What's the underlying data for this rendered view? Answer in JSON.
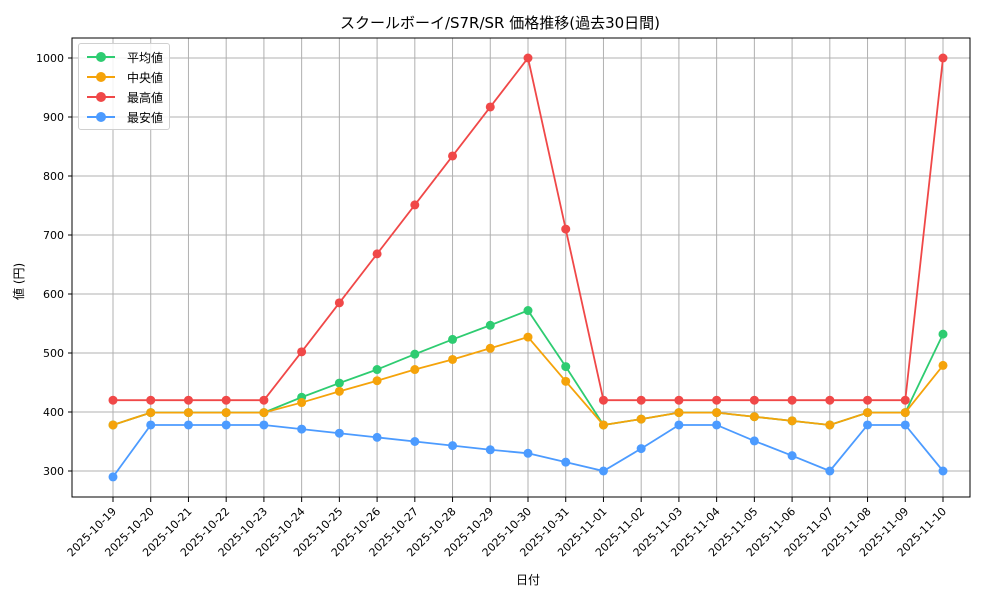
{
  "title": "スクールボーイ/S7R/SR 価格推移(過去30日間)",
  "chart_data": {
    "type": "line",
    "title": "スクールボーイ/S7R/SR 価格推移(過去30日間)",
    "xlabel": "日付",
    "ylabel": "値 (円)",
    "ylim": [
      255,
      1035
    ],
    "yticks": [
      300,
      400,
      500,
      600,
      700,
      800,
      900,
      1000
    ],
    "grid": true,
    "legend_position": "upper left",
    "categories": [
      "2025-10-19",
      "2025-10-20",
      "2025-10-21",
      "2025-10-22",
      "2025-10-23",
      "2025-10-24",
      "2025-10-25",
      "2025-10-26",
      "2025-10-27",
      "2025-10-28",
      "2025-10-29",
      "2025-10-30",
      "2025-10-31",
      "2025-11-01",
      "2025-11-02",
      "2025-11-03",
      "2025-11-04",
      "2025-11-05",
      "2025-11-06",
      "2025-11-07",
      "2025-11-08",
      "2025-11-09",
      "2025-11-10"
    ],
    "series": [
      {
        "name": "平均値",
        "color": "#2ecc71",
        "values": [
          378,
          399,
          399,
          399,
          399,
          425,
          449,
          472,
          498,
          523,
          547,
          572,
          477,
          378,
          388,
          399,
          399,
          392,
          385,
          378,
          399,
          399,
          532
        ]
      },
      {
        "name": "中央値",
        "color": "#f5a30a",
        "values": [
          378,
          399,
          399,
          399,
          399,
          416,
          435,
          453,
          472,
          489,
          508,
          527,
          452,
          378,
          388,
          399,
          399,
          392,
          385,
          378,
          399,
          399,
          479
        ]
      },
      {
        "name": "最高値",
        "color": "#f04848",
        "values": [
          420,
          420,
          420,
          420,
          420,
          502,
          585,
          668,
          751,
          834,
          917,
          1000,
          710,
          420,
          420,
          420,
          420,
          420,
          420,
          420,
          420,
          420,
          1000
        ]
      },
      {
        "name": "最安値",
        "color": "#4c9bff",
        "values": [
          290,
          378,
          378,
          378,
          378,
          371,
          364,
          357,
          350,
          343,
          336,
          330,
          315,
          300,
          338,
          378,
          378,
          351,
          326,
          300,
          378,
          378,
          300
        ]
      }
    ]
  }
}
